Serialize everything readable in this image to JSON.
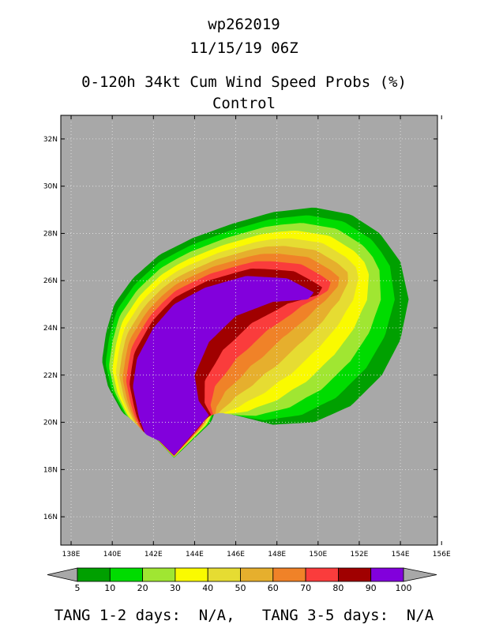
{
  "title": {
    "line1": "wp262019",
    "line2": "11/15/19 06Z",
    "line3": "0-120h 34kt Cum Wind Speed Probs (%)",
    "line4": "Control"
  },
  "chart_data": {
    "type": "heatmap",
    "title": "0-120h 34kt Cum Wind Speed Probs (%)",
    "subtitle": "Control",
    "storm_id": "wp262019",
    "init_time": "11/15/19 06Z",
    "xlim": [
      137.5,
      155.8
    ],
    "ylim": [
      14.8,
      33.0
    ],
    "xticks": [
      "138E",
      "140E",
      "142E",
      "144E",
      "146E",
      "148E",
      "150E",
      "152E",
      "154E",
      "156E"
    ],
    "xtick_values": [
      138,
      140,
      142,
      144,
      146,
      148,
      150,
      152,
      154,
      156
    ],
    "yticks": [
      "16N",
      "18N",
      "20N",
      "22N",
      "24N",
      "26N",
      "28N",
      "30N",
      "32N"
    ],
    "ytick_values": [
      16,
      18,
      20,
      22,
      24,
      26,
      28,
      30,
      32
    ],
    "grid": true,
    "background_color": "#a8a8a8",
    "contour_levels": [
      5,
      10,
      20,
      30,
      40,
      50,
      60,
      70,
      80,
      90,
      100
    ],
    "level_colors": [
      "#00a000",
      "#00dc00",
      "#a0e632",
      "#fafa00",
      "#e6dc32",
      "#e6af2d",
      "#f08228",
      "#fa3c3c",
      "#a00000",
      "#8200dc"
    ],
    "probability_swath": {
      "outer_5pct": [
        [
          143,
          18.5
        ],
        [
          141.8,
          19.6
        ],
        [
          140.5,
          20.4
        ],
        [
          139.8,
          21.5
        ],
        [
          139.5,
          22.6
        ],
        [
          139.7,
          23.8
        ],
        [
          140.1,
          25
        ],
        [
          141,
          26.1
        ],
        [
          142.3,
          27.1
        ],
        [
          143.9,
          27.8
        ],
        [
          145.8,
          28.4
        ],
        [
          147.8,
          28.9
        ],
        [
          149.8,
          29.1
        ],
        [
          151.6,
          28.8
        ],
        [
          153,
          28
        ],
        [
          154,
          26.8
        ],
        [
          154.4,
          25.2
        ],
        [
          154,
          23.5
        ],
        [
          153.1,
          22
        ],
        [
          151.6,
          20.7
        ],
        [
          149.8,
          20
        ],
        [
          147.8,
          19.9
        ],
        [
          146,
          20.3
        ],
        [
          145.1,
          20.7
        ],
        [
          144.8,
          20
        ]
      ],
      "inner_100pct": [
        [
          143,
          18.6
        ],
        [
          142.3,
          19.2
        ],
        [
          141.6,
          19.5
        ],
        [
          141.3,
          20.2
        ],
        [
          141,
          21.5
        ],
        [
          141.2,
          22.7
        ],
        [
          142,
          24
        ],
        [
          143,
          25
        ],
        [
          144.5,
          25.7
        ],
        [
          146.5,
          26.2
        ],
        [
          148.5,
          26.1
        ],
        [
          149.8,
          25.5
        ],
        [
          149.5,
          25.2
        ],
        [
          147.8,
          25.1
        ],
        [
          146,
          24.5
        ],
        [
          144.7,
          23.4
        ],
        [
          144,
          22
        ],
        [
          144.2,
          20.9
        ],
        [
          144.7,
          20.3
        ]
      ]
    },
    "colorbar_labels": [
      "5",
      "10",
      "20",
      "30",
      "40",
      "50",
      "60",
      "70",
      "80",
      "90",
      "100"
    ],
    "footer": {
      "label1": "TANG 1-2 days:",
      "value1": "N/A,",
      "label2": "TANG 3-5 days:",
      "value2": "N/A"
    }
  }
}
